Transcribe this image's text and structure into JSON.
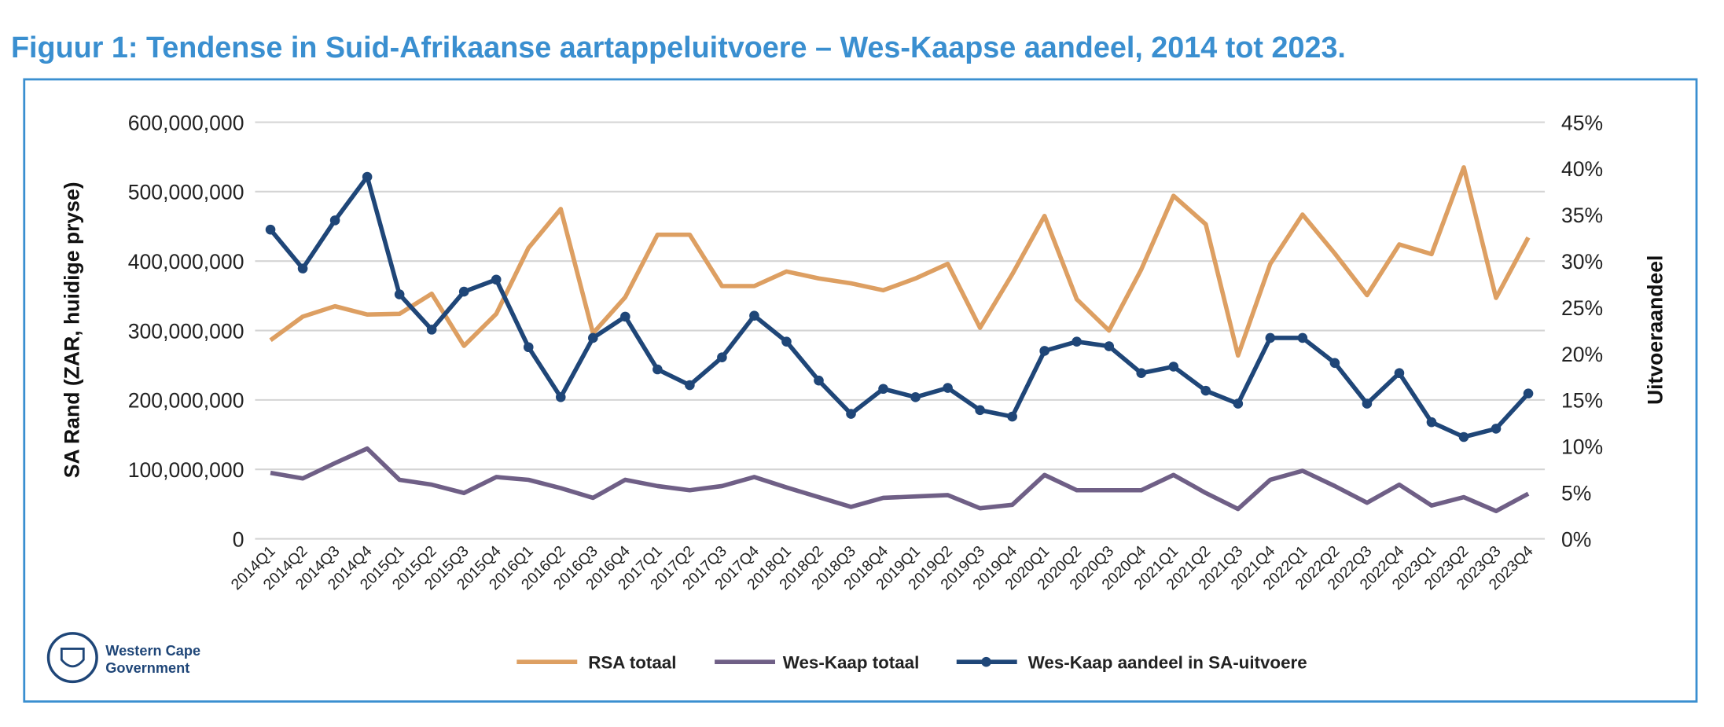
{
  "title": "Figuur 1: Tendense in Suid-Afrikaanse aartappeluitvoere – Wes-Kaapse aandeel, 2014 tot 2023.",
  "logo": {
    "line1": "Western Cape",
    "line2": "Government"
  },
  "colors": {
    "frame": "#3a8fd0",
    "rsa": "#dd9f62",
    "wc": "#6f5f86",
    "share": "#1f4678",
    "grid": "#d4d4d4"
  },
  "chart_data": {
    "type": "line",
    "title": "Figuur 1: Tendense in Suid-Afrikaanse aartappeluitvoere – Wes-Kaapse aandeel, 2014 tot 2023.",
    "ylabel": "SA Rand (ZAR, huidige pryse)",
    "y2label": "Uitvoeraandeel",
    "ylim": [
      0,
      600000000
    ],
    "y2lim": [
      0,
      45
    ],
    "yticks": [
      "0",
      "100,000,000",
      "200,000,000",
      "300,000,000",
      "400,000,000",
      "500,000,000",
      "600,000,000"
    ],
    "y2ticks": [
      "0%",
      "5%",
      "10%",
      "15%",
      "20%",
      "25%",
      "30%",
      "35%",
      "40%",
      "45%"
    ],
    "grid": true,
    "legend_position": "bottom",
    "categories": [
      "2014Q1",
      "2014Q2",
      "2014Q3",
      "2014Q4",
      "2015Q1",
      "2015Q2",
      "2015Q3",
      "2015Q4",
      "2016Q1",
      "2016Q2",
      "2016Q3",
      "2016Q4",
      "2017Q1",
      "2017Q2",
      "2017Q3",
      "2017Q4",
      "2018Q1",
      "2018Q2",
      "2018Q3",
      "2018Q4",
      "2019Q1",
      "2019Q2",
      "2019Q3",
      "2019Q4",
      "2020Q1",
      "2020Q2",
      "2020Q3",
      "2020Q4",
      "2021Q1",
      "2021Q2",
      "2021Q3",
      "2021Q4",
      "2022Q1",
      "2022Q2",
      "2022Q3",
      "2022Q4",
      "2023Q1",
      "2023Q2",
      "2023Q3",
      "2023Q4"
    ],
    "series": [
      {
        "name": "RSA totaal",
        "axis": "left",
        "markers": false,
        "values": [
          286,
          320,
          335,
          323,
          324,
          353,
          278,
          324,
          419,
          475,
          296,
          348,
          438,
          438,
          364,
          364,
          385,
          375,
          368,
          358,
          375,
          396,
          304,
          381,
          465,
          345,
          300,
          388,
          494,
          453,
          264,
          396,
          467,
          411,
          351,
          424,
          410,
          535,
          347,
          434
        ],
        "unit": "million ZAR"
      },
      {
        "name": "Wes-Kaap totaal",
        "axis": "left",
        "markers": false,
        "values": [
          95,
          87,
          109,
          130,
          85,
          78,
          66,
          89,
          85,
          73,
          59,
          85,
          76,
          70,
          76,
          89,
          74,
          60,
          46,
          59,
          61,
          63,
          44,
          49,
          92,
          70,
          70,
          70,
          92,
          66,
          43,
          85,
          98,
          76,
          52,
          78,
          48,
          60,
          40,
          65
        ],
        "unit": "million ZAR"
      },
      {
        "name": "Wes-Kaap aandeel in SA-uitvoere",
        "axis": "right",
        "markers": true,
        "values": [
          33.4,
          29.2,
          34.4,
          39.1,
          26.4,
          22.6,
          26.7,
          28.0,
          20.7,
          15.3,
          21.7,
          24.0,
          18.3,
          16.6,
          19.6,
          24.1,
          21.3,
          17.1,
          13.5,
          16.2,
          15.3,
          16.3,
          13.9,
          13.2,
          20.3,
          21.3,
          20.8,
          17.9,
          18.6,
          16.0,
          14.6,
          21.7,
          21.7,
          19.0,
          14.6,
          17.9,
          12.6,
          11.0,
          11.9,
          15.7
        ],
        "unit": "%"
      }
    ]
  }
}
